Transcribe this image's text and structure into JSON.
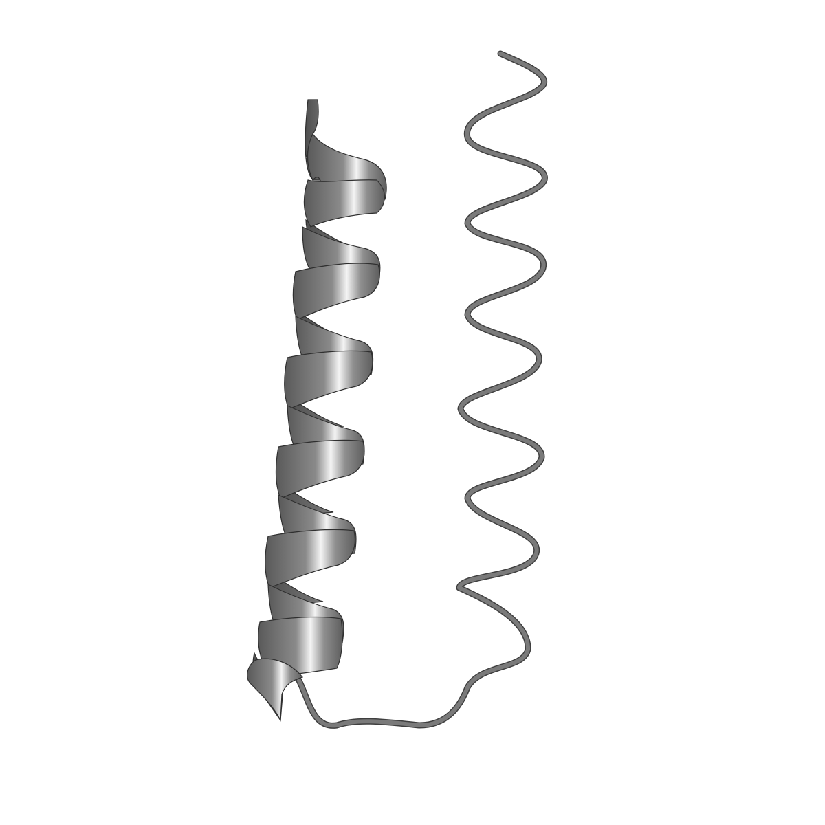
{
  "scene": {
    "background_color": "#ffffff",
    "representation": "cartoon",
    "elements": [
      {
        "name": "alpha-helix",
        "kind": "helical ribbon",
        "color": "#808080"
      },
      {
        "name": "coil-helix",
        "kind": "helical tube",
        "color": "#6e6e6e"
      },
      {
        "name": "connecting-loop",
        "kind": "loop tube",
        "color": "#6e6e6e"
      }
    ]
  }
}
